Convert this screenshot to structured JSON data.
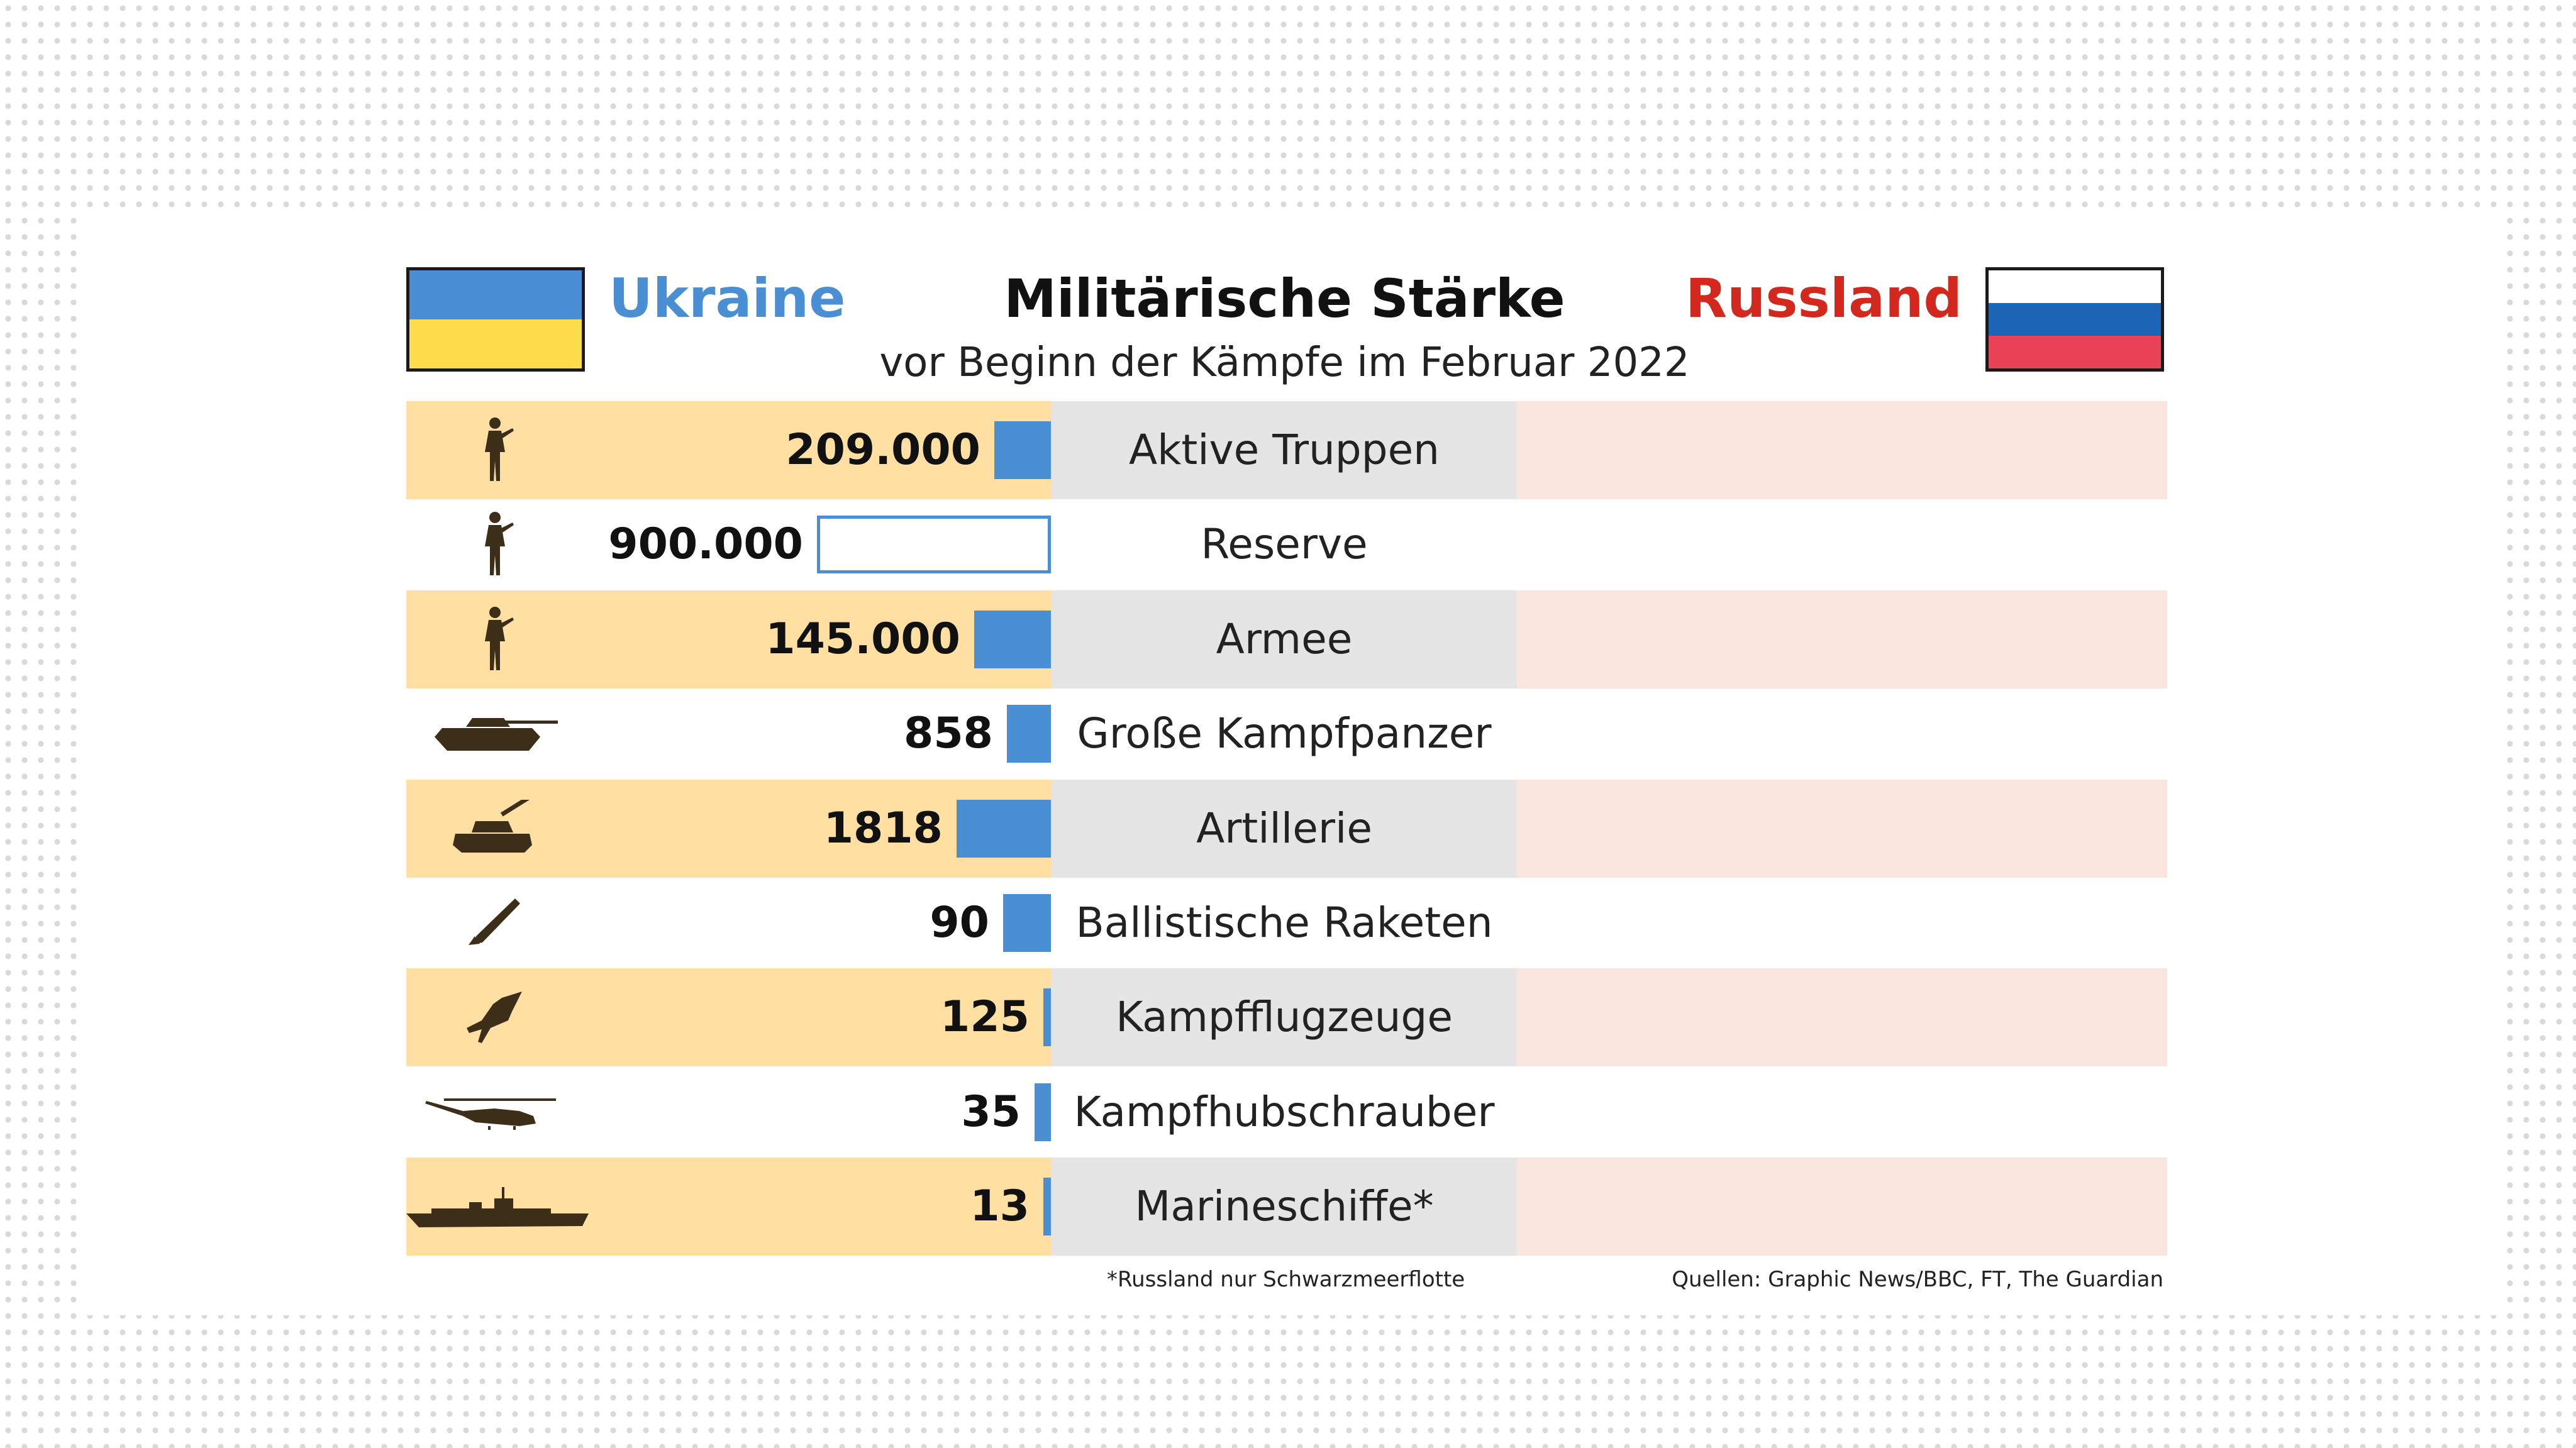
{
  "title": "Militärische Stärke",
  "subtitle": "vor Beginn der Kämpfe im Februar 2022",
  "ukraine_label": "Ukraine",
  "russia_label": "Russland",
  "footnote": "*Russland nur Schwarzmeerflotte",
  "sources": "Quellen: Graphic News/BBC, FT, The Guardian",
  "colors": {
    "ukraine_blue": "#4a8fd3",
    "ukraine_yellow": "#fedd4d",
    "russia_red": "#d2281e",
    "russia_blue": "#1c64b6",
    "russia_flag_red": "#ea4256",
    "row_band_left": "#ffe0a2",
    "row_band_middle": "#e5e5e5",
    "row_band_right": "#fae5df",
    "bar_fill": "#4a8fd3"
  },
  "chart_data": {
    "type": "bar",
    "categories": [
      "Aktive Truppen",
      "Reserve",
      "Armee",
      "Große Kampfpanzer",
      "Artillerie",
      "Ballistische Raketen",
      "Kampfflugzeuge",
      "Kampfhubschrauber",
      "Marineschiffe*"
    ],
    "series": [
      {
        "name": "Ukraine",
        "values": [
          209000,
          900000,
          145000,
          858,
          1818,
          90,
          125,
          35,
          13
        ],
        "value_labels": [
          "209.000",
          "900.000",
          "145.000",
          "858",
          "1818",
          "90",
          "125",
          "35",
          "13"
        ],
        "bar_style": [
          "filled",
          "outlined",
          "filled",
          "filled",
          "filled",
          "filled",
          "filled",
          "filled",
          "filled"
        ]
      }
    ],
    "icons": [
      "soldier-icon",
      "soldier-icon",
      "soldier-icon",
      "tank-icon",
      "artillery-icon",
      "missile-icon",
      "fighter-jet-icon",
      "helicopter-icon",
      "warship-icon"
    ]
  }
}
